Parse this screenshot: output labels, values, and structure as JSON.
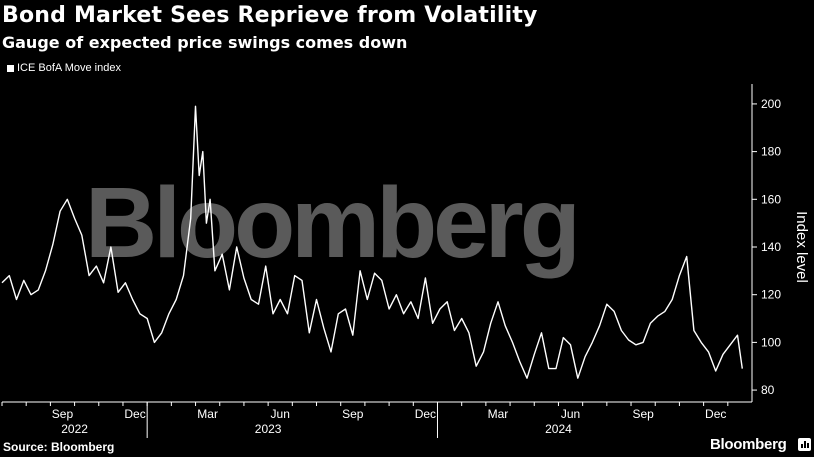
{
  "header": {
    "title": "Bond Market Sees Reprieve from Volatility",
    "subtitle": "Gauge of expected price swings comes down"
  },
  "footer": {
    "source": "Source: Bloomberg",
    "brand": "Bloomberg"
  },
  "watermark": "Bloomberg",
  "colors": {
    "background": "#000000",
    "line": "#ffffff",
    "watermark": "#5a5a5a"
  },
  "chart_data": {
    "type": "line",
    "title": "Bond Market Sees Reprieve from Volatility",
    "subtitle": "Gauge of expected price swings comes down",
    "ylabel": "Index level",
    "xlabel": "",
    "ylim": [
      75,
      205
    ],
    "yticks": [
      80,
      100,
      120,
      140,
      160,
      180,
      200
    ],
    "y_axis_side": "right",
    "legend": [
      "ICE BofA Move index"
    ],
    "legend_position": "top-left",
    "x_start": "2022-07",
    "x_end": "2025-01",
    "x_month_ticks": [
      "Sep",
      "Dec",
      "Mar",
      "Jun",
      "Sep",
      "Dec",
      "Mar",
      "Jun",
      "Sep",
      "Dec"
    ],
    "x_month_tick_index": [
      2,
      5,
      8,
      11,
      14,
      17,
      20,
      23,
      26,
      29
    ],
    "x_year_labels": [
      {
        "label": "2022",
        "month_index": 3
      },
      {
        "label": "2023",
        "month_index": 11
      },
      {
        "label": "2024",
        "month_index": 23
      }
    ],
    "series": [
      {
        "name": "ICE BofA Move index",
        "x_month_index": [
          0.0,
          0.3,
          0.6,
          0.9,
          1.2,
          1.5,
          1.8,
          2.1,
          2.4,
          2.7,
          3.0,
          3.3,
          3.6,
          3.9,
          4.2,
          4.5,
          4.8,
          5.1,
          5.4,
          5.7,
          6.0,
          6.3,
          6.6,
          6.9,
          7.2,
          7.5,
          7.8,
          8.0,
          8.15,
          8.3,
          8.45,
          8.6,
          8.8,
          9.1,
          9.4,
          9.7,
          10.0,
          10.3,
          10.6,
          10.9,
          11.2,
          11.5,
          11.8,
          12.1,
          12.4,
          12.7,
          13.0,
          13.3,
          13.6,
          13.9,
          14.2,
          14.5,
          14.8,
          15.1,
          15.4,
          15.7,
          16.0,
          16.3,
          16.6,
          16.9,
          17.2,
          17.5,
          17.8,
          18.1,
          18.4,
          18.7,
          19.0,
          19.3,
          19.6,
          19.9,
          20.2,
          20.5,
          20.8,
          21.1,
          21.4,
          21.7,
          22.0,
          22.3,
          22.6,
          22.9,
          23.2,
          23.5,
          23.8,
          24.1,
          24.4,
          24.7,
          25.0,
          25.3,
          25.6,
          25.9,
          26.2,
          26.5,
          26.8,
          27.1,
          27.4,
          27.7,
          28.0,
          28.3,
          28.6,
          28.9,
          29.2,
          29.5,
          29.8,
          30.1,
          30.4,
          30.6
        ],
        "values": [
          125,
          128,
          118,
          126,
          120,
          122,
          130,
          141,
          155,
          160,
          152,
          145,
          128,
          132,
          125,
          140,
          121,
          125,
          118,
          112,
          110,
          100,
          104,
          112,
          118,
          128,
          152,
          199,
          170,
          180,
          150,
          160,
          130,
          137,
          122,
          140,
          127,
          118,
          116,
          132,
          112,
          118,
          112,
          128,
          126,
          104,
          118,
          106,
          96,
          112,
          114,
          103,
          130,
          118,
          129,
          126,
          114,
          120,
          112,
          117,
          110,
          127,
          108,
          114,
          117,
          105,
          110,
          104,
          90,
          96,
          108,
          117,
          107,
          100,
          92,
          85,
          95,
          104,
          89,
          89,
          102,
          99,
          85,
          94,
          100,
          107,
          116,
          113,
          105,
          101,
          99,
          100,
          108,
          111,
          113,
          118,
          128,
          136,
          105,
          100,
          96,
          88,
          95,
          99,
          103,
          89
        ]
      }
    ]
  }
}
